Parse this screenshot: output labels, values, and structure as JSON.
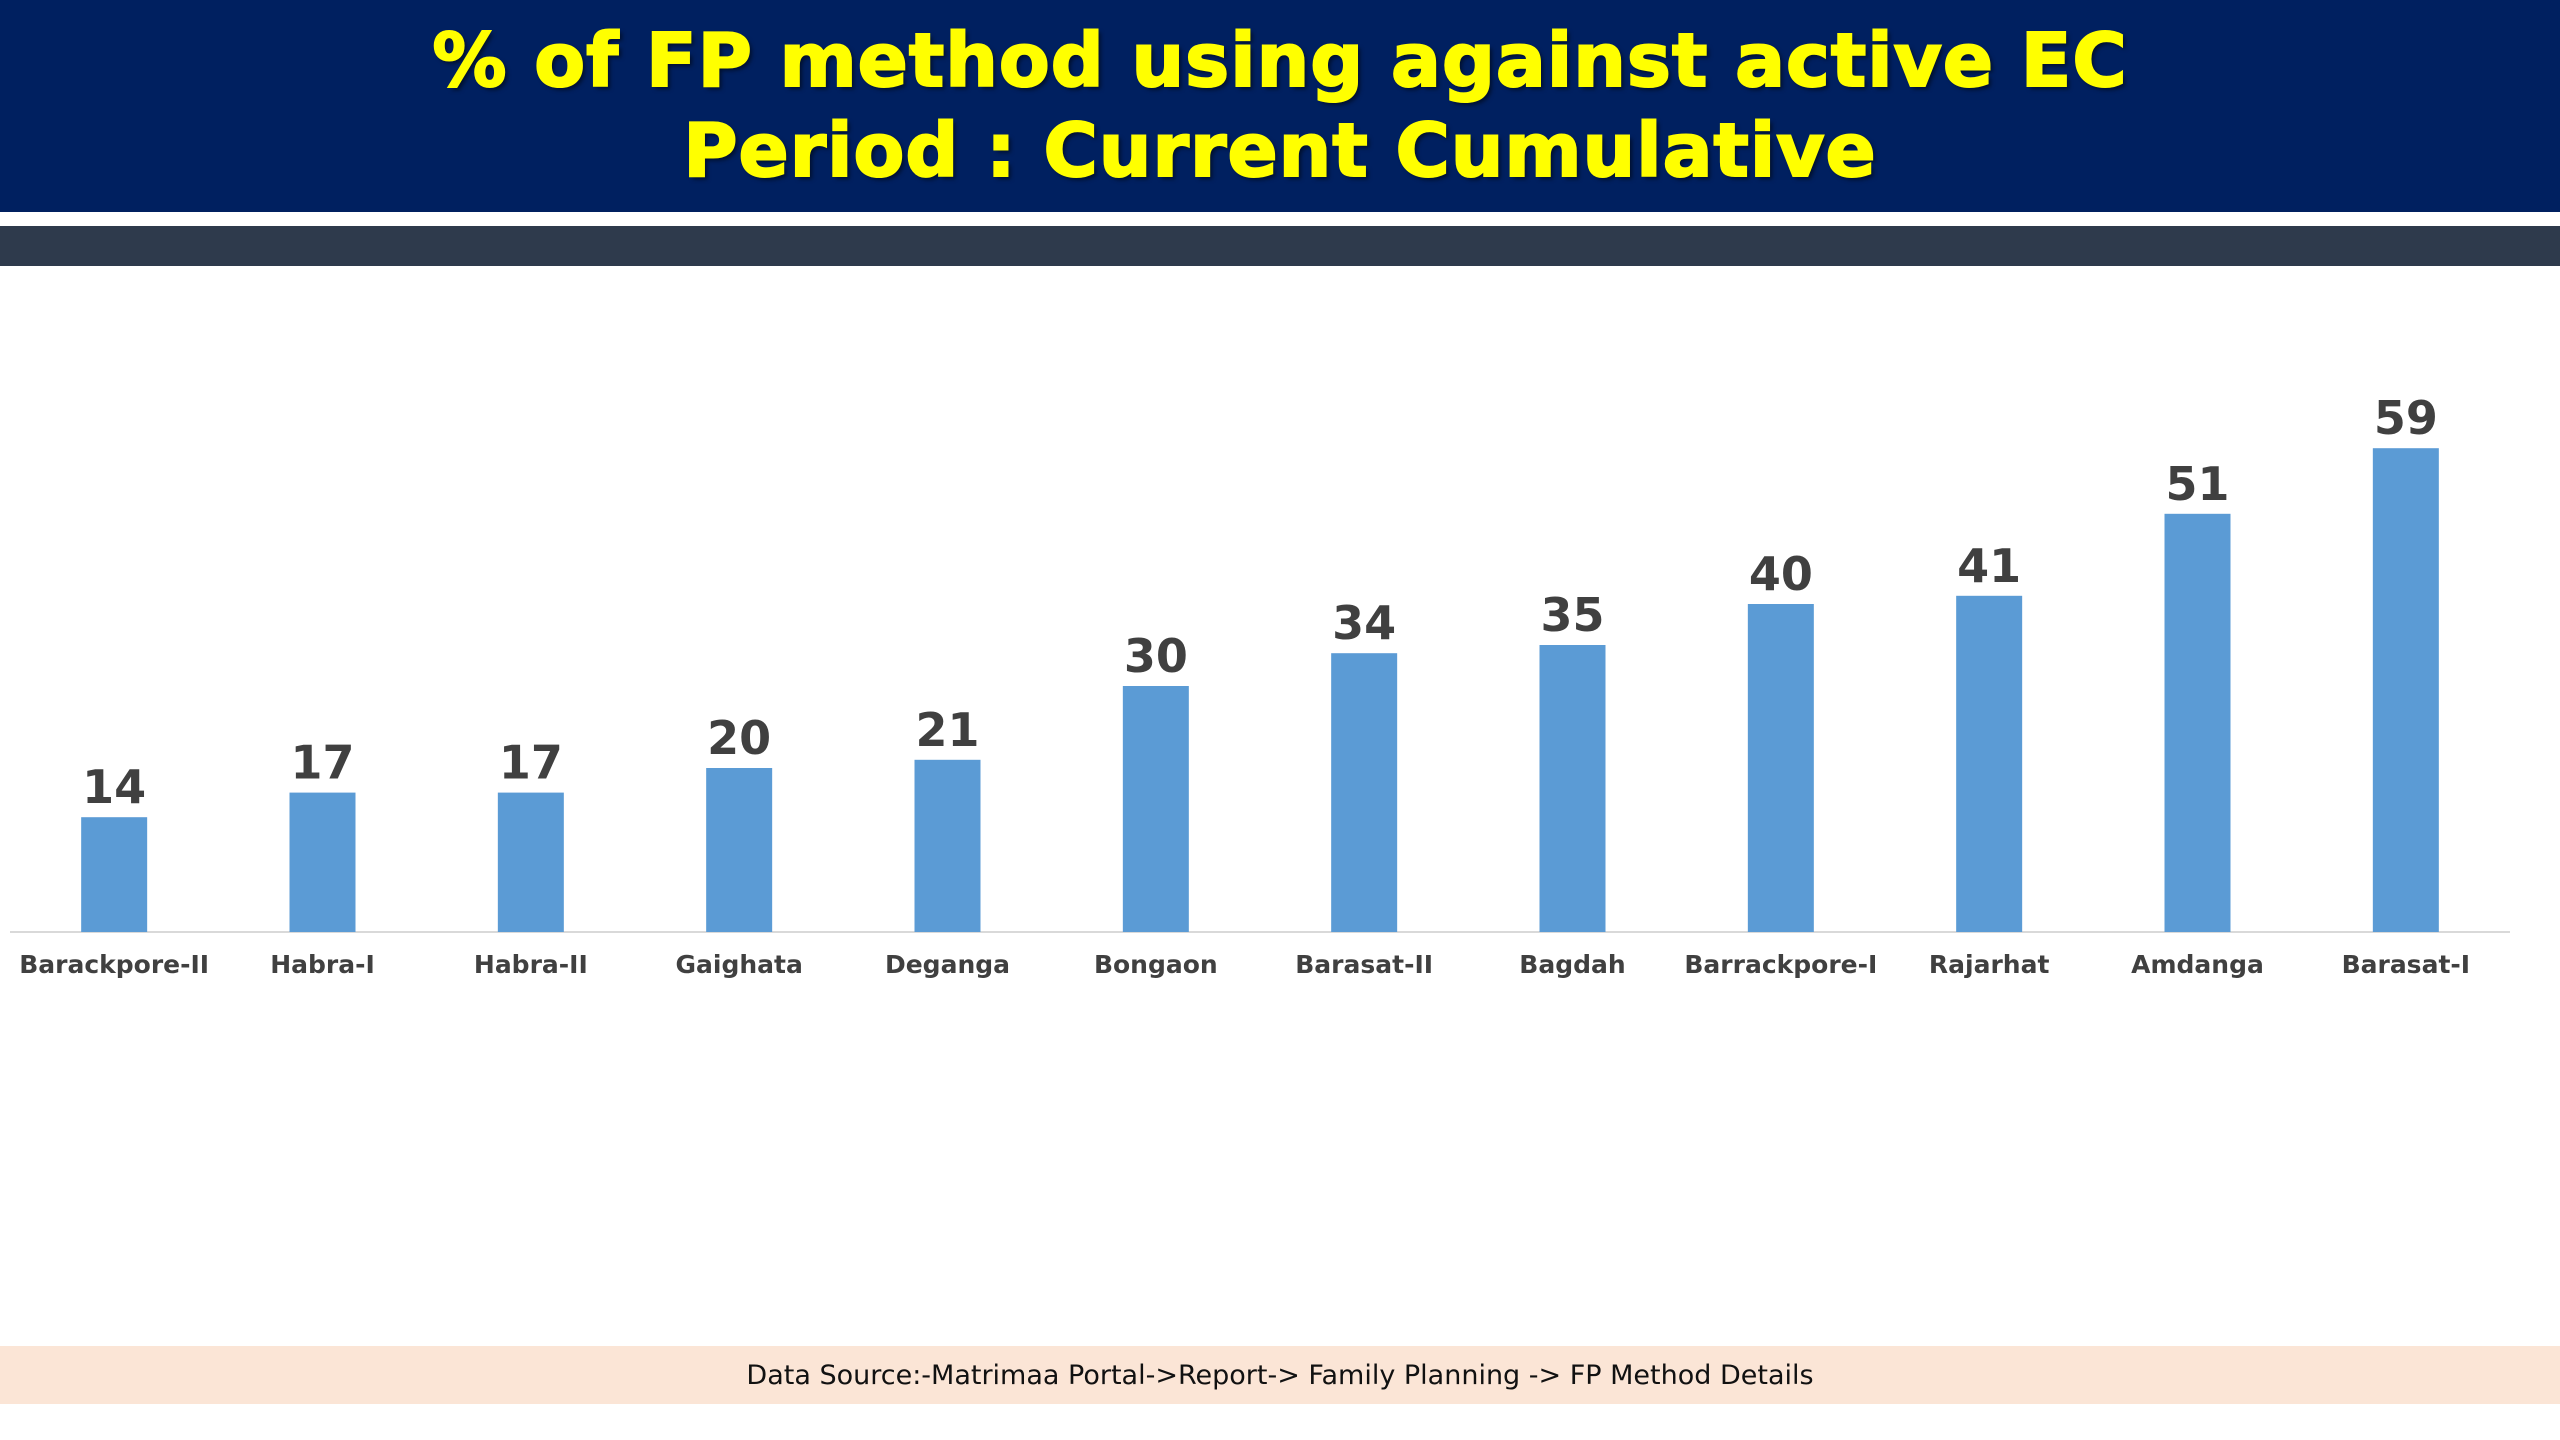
{
  "header": {
    "title_line1": "% of FP method using against active EC",
    "title_line2": "Period : Current Cumulative"
  },
  "footer": {
    "source": "Data Source:-Matrimaa Portal->Report-> Family Planning -> FP Method Details"
  },
  "colors": {
    "header_bg": "#002060",
    "title": "#ffff00",
    "bar": "#5b9bd5",
    "label": "#404040",
    "footer_bg": "#fbe5d6"
  },
  "chart_data": {
    "type": "bar",
    "categories": [
      "Barackpore-II",
      "Habra-I",
      "Habra-II",
      "Gaighata",
      "Deganga",
      "Bongaon",
      "Barasat-II",
      "Bagdah",
      "Barrackpore-I",
      "Rajarhat",
      "Amdanga",
      "Barasat-I"
    ],
    "values": [
      14,
      17,
      17,
      20,
      21,
      30,
      34,
      35,
      40,
      41,
      51,
      59
    ],
    "value_labels": [
      "14",
      "17",
      "17",
      "20",
      "21",
      "30",
      "34",
      "35",
      "40",
      "41",
      "51",
      "59"
    ],
    "ylim": [
      0,
      65
    ],
    "grid": false,
    "data_labels": true
  }
}
